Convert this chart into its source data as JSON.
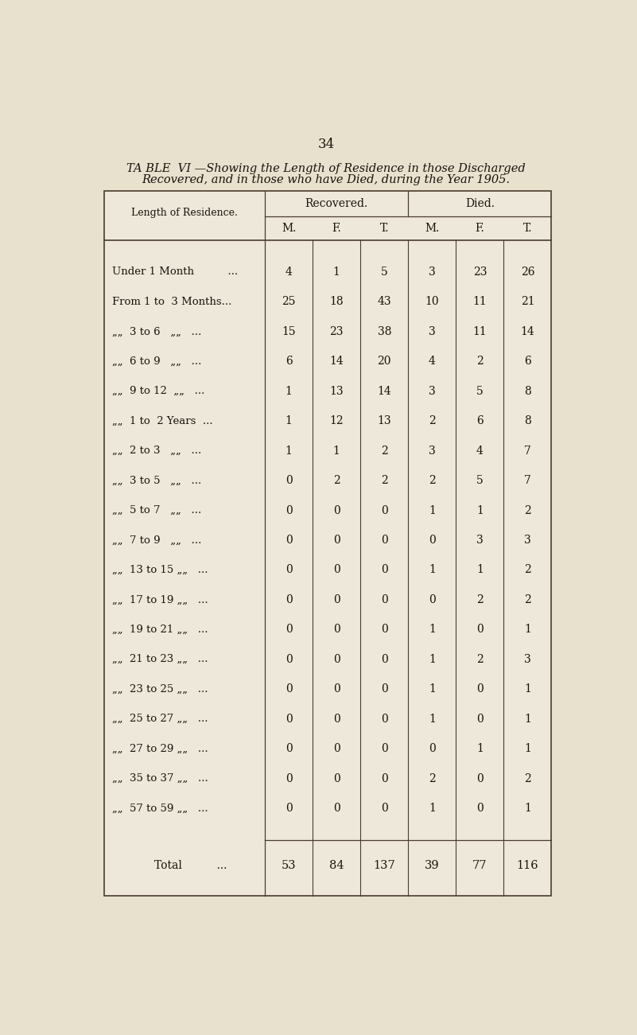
{
  "page_number": "34",
  "title_line1": "TA BLE  VI —Showing the Length of Residence in those Discharged",
  "title_line2": "Recovered, and in those who have Died, during the Year 1905.",
  "col_header_left": "Length of Residence.",
  "col_group1": "Recovered.",
  "col_group2": "Died.",
  "sub_headers": [
    "M.",
    "F.",
    "T.",
    "M.",
    "F.",
    "T."
  ],
  "rows": [
    [
      "Under 1 Month          ...",
      4,
      1,
      5,
      3,
      23,
      26
    ],
    [
      "From 1 to  3 Months...",
      25,
      18,
      43,
      10,
      11,
      21
    ],
    [
      "„„  3 to 6   „„   ...",
      15,
      23,
      38,
      3,
      11,
      14
    ],
    [
      "„„  6 to 9   „„   ...",
      6,
      14,
      20,
      4,
      2,
      6
    ],
    [
      "„„  9 to 12  „„   ...",
      1,
      13,
      14,
      3,
      5,
      8
    ],
    [
      "„„  1 to  2 Years  ...",
      1,
      12,
      13,
      2,
      6,
      8
    ],
    [
      "„„  2 to 3   „„   ...",
      1,
      1,
      2,
      3,
      4,
      7
    ],
    [
      "„„  3 to 5   „„   ...",
      0,
      2,
      2,
      2,
      5,
      7
    ],
    [
      "„„  5 to 7   „„   ...",
      0,
      0,
      0,
      1,
      1,
      2
    ],
    [
      "„„  7 to 9   „„   ...",
      0,
      0,
      0,
      0,
      3,
      3
    ],
    [
      "„„  13 to 15 „„   ...",
      0,
      0,
      0,
      1,
      1,
      2
    ],
    [
      "„„  17 to 19 „„   ...",
      0,
      0,
      0,
      0,
      2,
      2
    ],
    [
      "„„  19 to 21 „„   ...",
      0,
      0,
      0,
      1,
      0,
      1
    ],
    [
      "„„  21 to 23 „„   ...",
      0,
      0,
      0,
      1,
      2,
      3
    ],
    [
      "„„  23 to 25 „„   ...",
      0,
      0,
      0,
      1,
      0,
      1
    ],
    [
      "„„  25 to 27 „„   ...",
      0,
      0,
      0,
      1,
      0,
      1
    ],
    [
      "„„  27 to 29 „„   ...",
      0,
      0,
      0,
      0,
      1,
      1
    ],
    [
      "„„  35 to 37 „„   ...",
      0,
      0,
      0,
      2,
      0,
      2
    ],
    [
      "„„  57 to 59 „„   ...",
      0,
      0,
      0,
      1,
      0,
      1
    ]
  ],
  "total_row": [
    "Total          ...",
    53,
    84,
    137,
    39,
    77,
    116
  ],
  "bg_color": "#e8e1ce",
  "table_bg": "#ede8da",
  "line_color": "#4a3c2c",
  "text_color": "#1a120a",
  "title_color": "#1a120a"
}
